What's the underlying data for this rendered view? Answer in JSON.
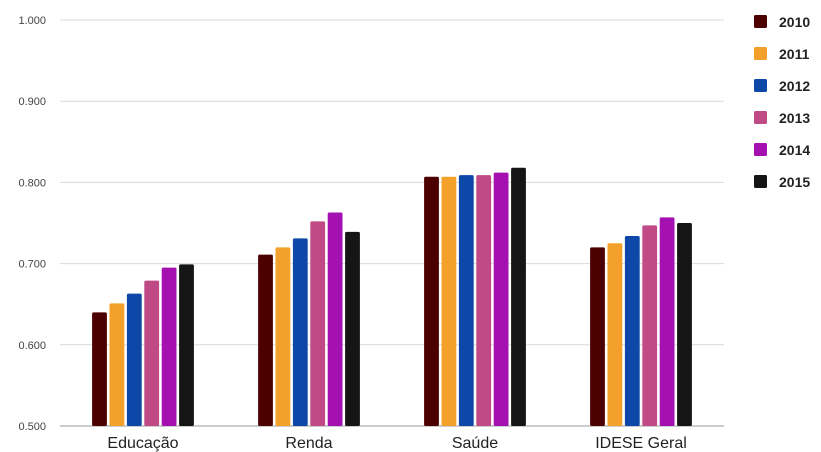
{
  "chart_data": {
    "type": "bar",
    "title": "",
    "xlabel": "",
    "ylabel": "",
    "categories": [
      "Educação",
      "Renda",
      "Saúde",
      "IDESE Geral"
    ],
    "ylim": [
      0.5,
      1.0
    ],
    "yticks": [
      "0.500",
      "0.600",
      "0.700",
      "0.800",
      "0.900",
      "1.000"
    ],
    "ytick_values": [
      0.5,
      0.6,
      0.7,
      0.8,
      0.9,
      1.0
    ],
    "grid": true,
    "legend_position": "right",
    "series": [
      {
        "name": "2010",
        "color": "#4d0000",
        "values": [
          0.64,
          0.711,
          0.807,
          0.72
        ]
      },
      {
        "name": "2011",
        "color": "#f4a12b",
        "values": [
          0.651,
          0.72,
          0.807,
          0.725
        ]
      },
      {
        "name": "2012",
        "color": "#0d47a8",
        "values": [
          0.663,
          0.731,
          0.809,
          0.734
        ]
      },
      {
        "name": "2013",
        "color": "#c04a86",
        "values": [
          0.679,
          0.752,
          0.809,
          0.747
        ]
      },
      {
        "name": "2014",
        "color": "#a510b0",
        "values": [
          0.695,
          0.763,
          0.812,
          0.757
        ]
      },
      {
        "name": "2015",
        "color": "#151515",
        "values": [
          0.699,
          0.739,
          0.818,
          0.75
        ]
      }
    ]
  }
}
